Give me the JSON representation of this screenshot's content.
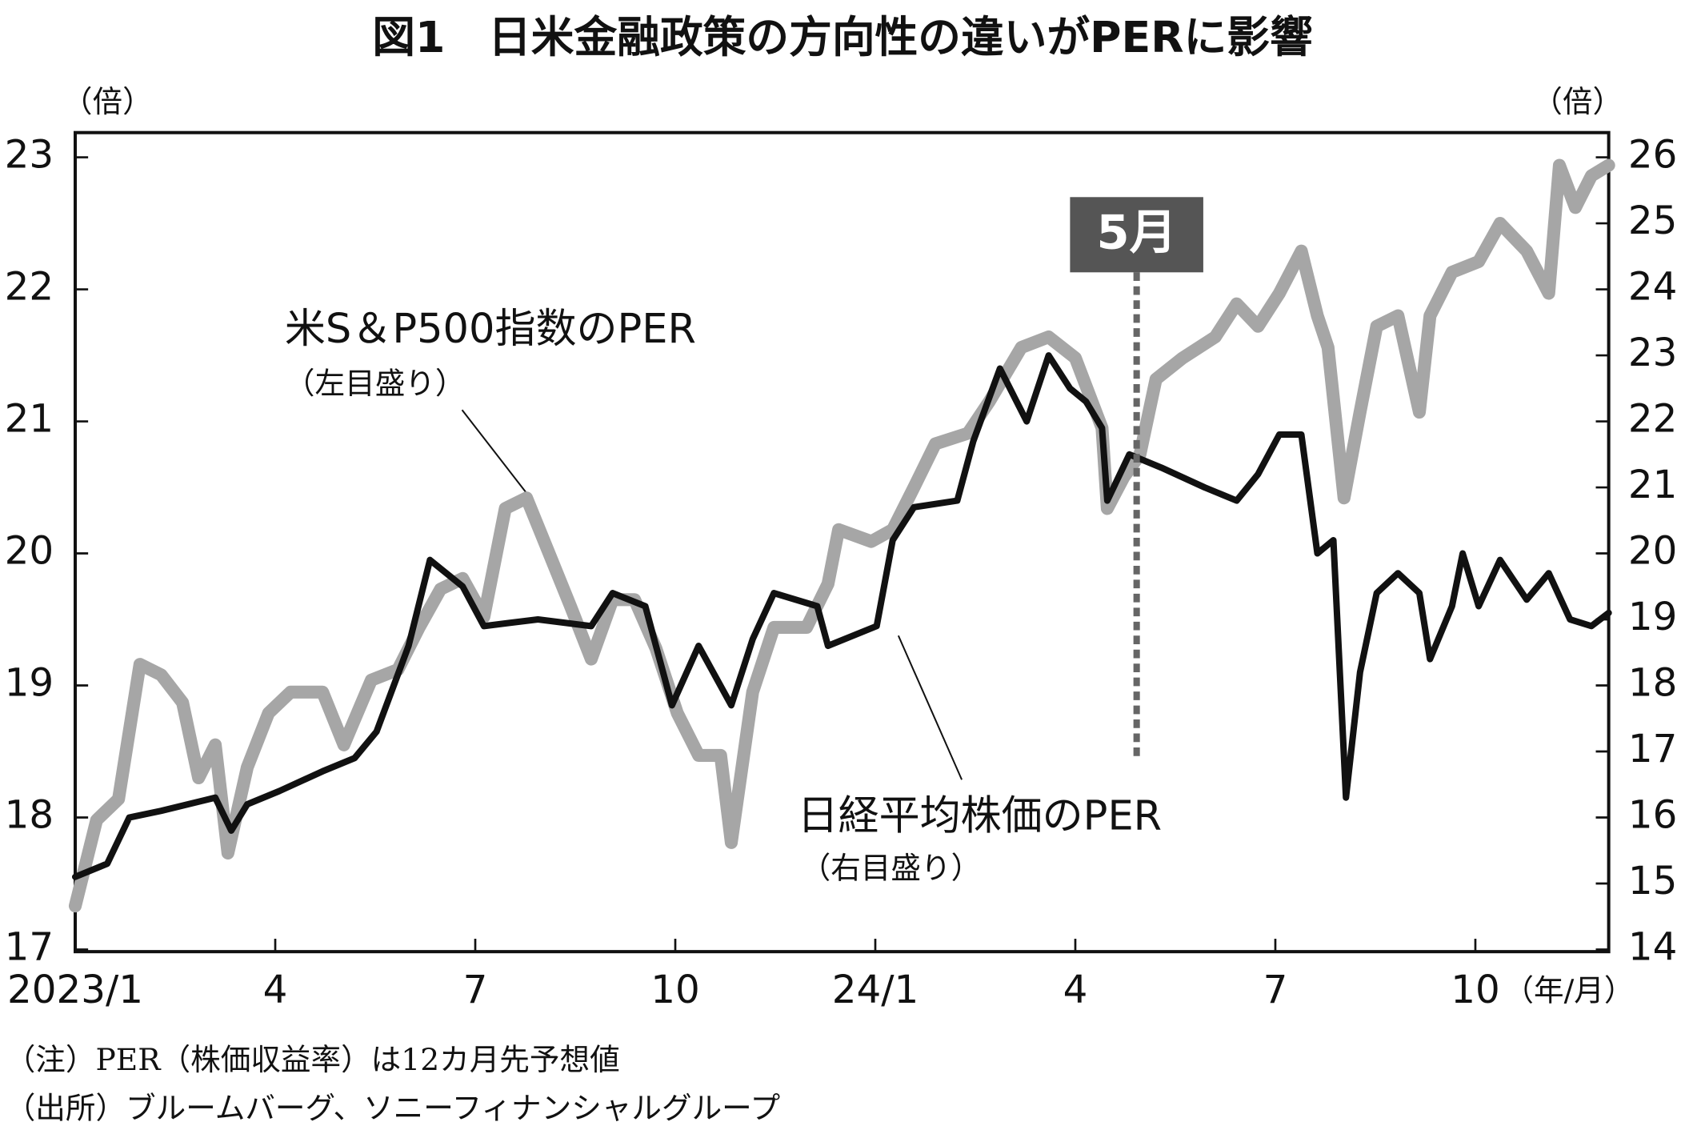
{
  "chart_data": {
    "type": "line",
    "title": "図1　日米金融政策の方向性の違いがPERに影響",
    "y_unit": "（倍）",
    "y2_unit": "（倍）",
    "x_unit": "（年/月）",
    "xlim": [
      0,
      23
    ],
    "xticks": [
      {
        "value": 0,
        "label": "2023/1"
      },
      {
        "value": 3,
        "label": "4"
      },
      {
        "value": 6,
        "label": "7"
      },
      {
        "value": 9,
        "label": "10"
      },
      {
        "value": 12,
        "label": "24/1"
      },
      {
        "value": 15,
        "label": "4"
      },
      {
        "value": 18,
        "label": "7"
      },
      {
        "value": 21,
        "label": "10"
      }
    ],
    "ylim": [
      17,
      23
    ],
    "yticks": [
      17,
      18,
      19,
      20,
      21,
      22,
      23
    ],
    "y2lim": [
      14,
      26
    ],
    "y2ticks": [
      14,
      15,
      16,
      17,
      18,
      19,
      20,
      21,
      22,
      23,
      24,
      25,
      26
    ],
    "series": [
      {
        "name": "米S＆P500指数のPER",
        "note": "（左目盛り）",
        "color": "#a6a6a6",
        "axis": "y",
        "x": [
          0,
          0.32,
          0.65,
          0.97,
          1.29,
          1.61,
          1.85,
          2.1,
          2.29,
          2.58,
          2.9,
          3.23,
          3.71,
          4.03,
          4.44,
          4.84,
          5.16,
          5.48,
          5.81,
          6.13,
          6.45,
          6.77,
          7.1,
          7.42,
          7.74,
          8.06,
          8.39,
          8.71,
          9.03,
          9.35,
          9.68,
          9.84,
          10.16,
          10.48,
          10.97,
          11.29,
          11.45,
          11.94,
          12.26,
          12.58,
          12.9,
          13.39,
          13.71,
          14.19,
          14.6,
          15.0,
          15.4,
          15.48,
          15.73,
          15.97,
          16.21,
          16.61,
          17.1,
          17.42,
          17.74,
          18.06,
          18.39,
          18.63,
          18.79,
          19.03,
          19.27,
          19.52,
          19.84,
          20.16,
          20.32,
          20.65,
          21.05,
          21.37,
          21.77,
          22.1,
          22.26,
          22.5,
          22.74,
          23.0
        ],
        "values": [
          17.33,
          17.98,
          18.14,
          19.16,
          19.08,
          18.87,
          18.3,
          18.55,
          17.73,
          18.38,
          18.79,
          18.95,
          18.95,
          18.55,
          19.04,
          19.12,
          19.44,
          19.73,
          19.81,
          19.52,
          20.34,
          20.42,
          20.01,
          19.61,
          19.2,
          19.65,
          19.65,
          19.28,
          18.79,
          18.47,
          18.47,
          17.81,
          18.95,
          19.44,
          19.44,
          19.77,
          20.18,
          20.09,
          20.18,
          20.5,
          20.83,
          20.91,
          21.15,
          21.56,
          21.64,
          21.48,
          20.95,
          20.34,
          20.58,
          20.75,
          21.32,
          21.48,
          21.64,
          21.89,
          21.72,
          21.97,
          22.29,
          21.8,
          21.56,
          20.42,
          21.07,
          21.72,
          21.8,
          21.07,
          21.8,
          22.13,
          22.21,
          22.5,
          22.29,
          21.97,
          22.94,
          22.62,
          22.86,
          22.94
        ]
      },
      {
        "name": "日経平均株価のPER",
        "note": "（右目盛り）",
        "color": "#111111",
        "axis": "y2",
        "x": [
          0,
          0.48,
          0.81,
          1.29,
          2.1,
          2.34,
          2.58,
          3.06,
          3.71,
          4.19,
          4.52,
          5.0,
          5.32,
          5.81,
          6.13,
          6.94,
          7.74,
          8.06,
          8.55,
          8.95,
          9.35,
          9.84,
          10.16,
          10.48,
          11.13,
          11.29,
          12.02,
          12.26,
          12.58,
          13.23,
          13.47,
          13.87,
          14.27,
          14.6,
          14.92,
          15.16,
          15.4,
          15.48,
          15.81,
          16.29,
          16.94,
          17.42,
          17.74,
          18.06,
          18.39,
          18.63,
          18.87,
          19.06,
          19.27,
          19.52,
          19.84,
          20.16,
          20.32,
          20.65,
          20.81,
          21.05,
          21.37,
          21.77,
          22.1,
          22.42,
          22.74,
          23.0
        ],
        "values": [
          15.1,
          15.3,
          16.0,
          16.1,
          16.3,
          15.8,
          16.2,
          16.4,
          16.7,
          16.9,
          17.3,
          18.6,
          19.9,
          19.5,
          18.9,
          19.0,
          18.9,
          19.4,
          19.2,
          17.7,
          18.6,
          17.7,
          18.7,
          19.4,
          19.2,
          18.6,
          18.9,
          20.2,
          20.7,
          20.8,
          21.7,
          22.8,
          22.0,
          23.0,
          22.5,
          22.3,
          21.9,
          20.8,
          21.5,
          21.3,
          21.0,
          20.8,
          21.2,
          21.8,
          21.8,
          20.0,
          20.2,
          16.3,
          18.2,
          19.4,
          19.7,
          19.4,
          18.4,
          19.2,
          20.0,
          19.2,
          19.9,
          19.3,
          19.7,
          19.0,
          18.9,
          19.1
        ]
      }
    ],
    "marker": {
      "label": "5月",
      "x": 15.92
    },
    "notes": [
      "（注）PER（株価収益率）は12カ月先予想値",
      "（出所）ブルームバーグ、ソニーフィナンシャルグループ"
    ]
  }
}
